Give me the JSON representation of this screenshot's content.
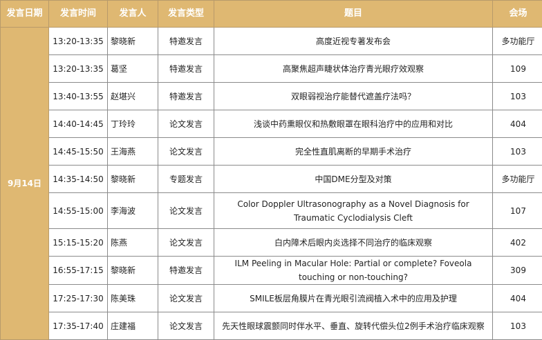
{
  "colors": {
    "header_bg": "#dfb872",
    "header_text": "#ffffff",
    "border": "#8a8a8a"
  },
  "headers": [
    "发言日期",
    "发言时间",
    "发言人",
    "发言类型",
    "题目",
    "会场"
  ],
  "date": "9月14日",
  "rows": [
    {
      "time": "13:20-13:35",
      "speaker": "黎晓新",
      "type": "特邀发言",
      "topic": "高度近视专著发布会",
      "venue": "多功能厅"
    },
    {
      "time": "13:20-13:35",
      "speaker": "葛坚",
      "type": "特邀发言",
      "topic": "高聚焦超声睫状体治疗青光眼疗效观察",
      "venue": "109"
    },
    {
      "time": "13:40-13:55",
      "speaker": "赵堪兴",
      "type": "特邀发言",
      "topic": "双眼弱视治疗能替代遮盖疗法吗？",
      "venue": "103"
    },
    {
      "time": "14:40-14:45",
      "speaker": "丁玲玲",
      "type": "论文发言",
      "topic": "浅谈中药熏眼仪和热敷眼罩在眼科治疗中的应用和对比",
      "venue": "404"
    },
    {
      "time": "14:45-15:50",
      "speaker": "王海燕",
      "type": "论文发言",
      "topic": "完全性直肌离断的早期手术治疗",
      "venue": "103"
    },
    {
      "time": "14:35-14:50",
      "speaker": "黎晓新",
      "type": "专题发言",
      "topic": "中国DME分型及对策",
      "venue": "多功能厅"
    },
    {
      "time": "14:55-15:00",
      "speaker": "李海波",
      "type": "论文发言",
      "topic": "Color Doppler Ultrasonography as a Novel Diagnosis for Traumatic Cyclodialysis Cleft",
      "venue": "107"
    },
    {
      "time": "15:15-15:20",
      "speaker": "陈燕",
      "type": "论文发言",
      "topic": "白内障术后眼内炎选择不同治疗的临床观察",
      "venue": "402"
    },
    {
      "time": "16:55-17:15",
      "speaker": "黎晓新",
      "type": "特邀发言",
      "topic": "ILM Peeling in Macular Hole: Partial or complete? Foveola touching or non-touching?",
      "venue": "309"
    },
    {
      "time": "17:25-17:30",
      "speaker": "陈美珠",
      "type": "论文发言",
      "topic": "SMILE板层角膜片在青光眼引流阀植入术中的应用及护理",
      "venue": "404"
    },
    {
      "time": "17:35-17:40",
      "speaker": "庄建福",
      "type": "论文发言",
      "topic": "先天性眼球震颤同时伴水平、垂直、旋转代偿头位2例手术治疗临床观察",
      "venue": "103"
    }
  ]
}
